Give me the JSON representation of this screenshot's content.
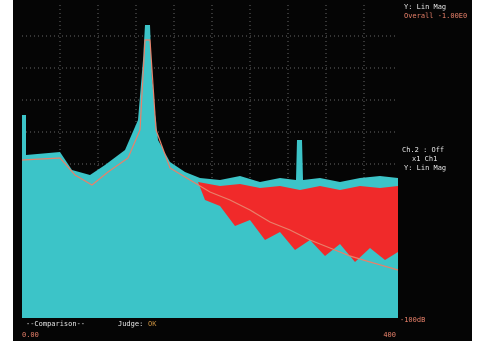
{
  "panel": {
    "top": [
      "Y: Lin Mag",
      "Overall -1.00E0"
    ],
    "middle": [
      "Ch.2 : Off",
      "x1 Ch1",
      "Y: Lin Mag"
    ],
    "bottom_right": "-100dB"
  },
  "footer": {
    "mode": "--Comparison--",
    "judge_label": "Judge:",
    "judge_value": "OK"
  },
  "x_axis": {
    "start": "0.00",
    "end": "400"
  }
}
